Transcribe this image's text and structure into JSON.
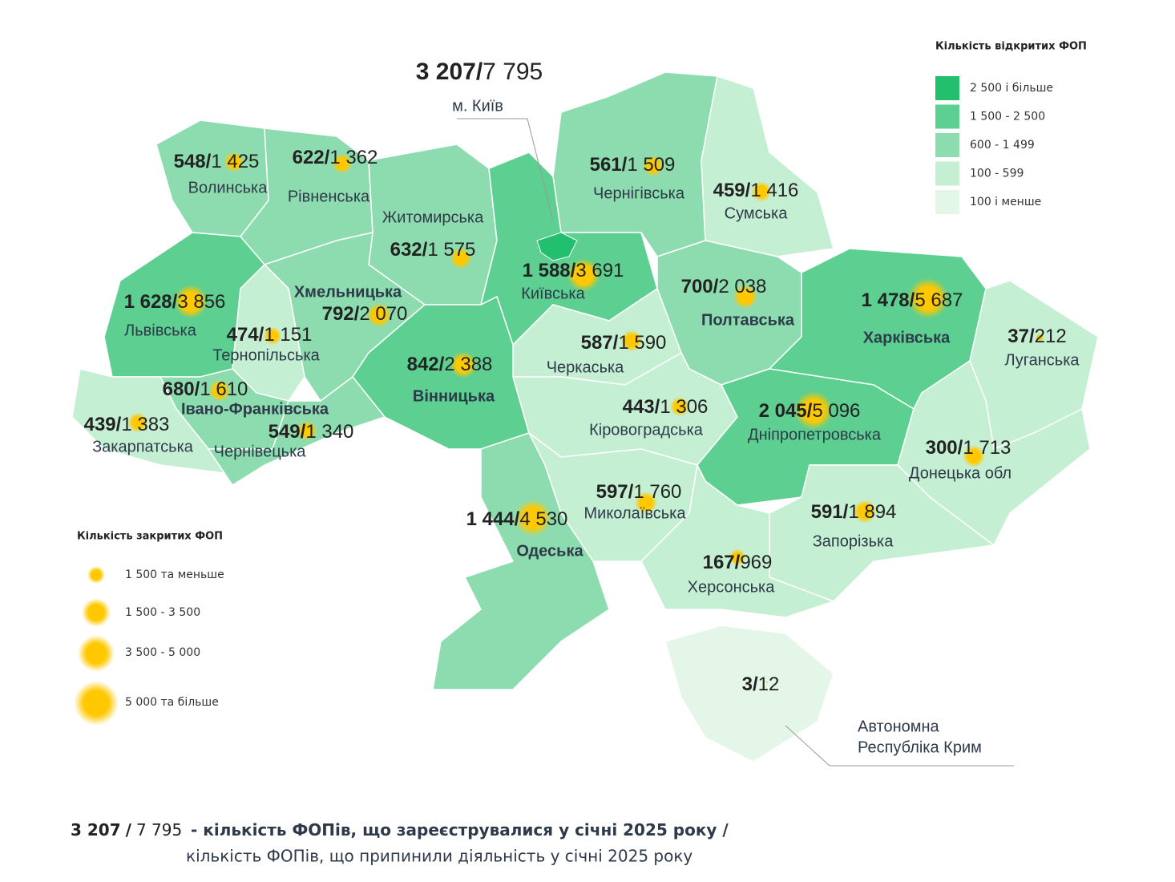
{
  "legend_opened": {
    "title": "Кількість відкритих ФОП",
    "items": [
      {
        "label": "2 500 і більше",
        "color": "#22c06e"
      },
      {
        "label": "1 500 - 2 500",
        "color": "#5ccf91"
      },
      {
        "label": "600 - 1 499",
        "color": "#8ddcaf"
      },
      {
        "label": "100 - 599",
        "color": "#c5efd3"
      },
      {
        "label": "100 і менше",
        "color": "#e4f6e8"
      }
    ]
  },
  "legend_closed": {
    "title": "Кількість закритих ФОП",
    "items": [
      {
        "label": "1 500 та меньше"
      },
      {
        "label": "1 500 - 3 500"
      },
      {
        "label": "3 500 - 5 000"
      },
      {
        "label": "5 000 та більше"
      }
    ]
  },
  "separator": "/",
  "capital": {
    "opened": "3 207",
    "closed": "7 795",
    "name": "м. Київ",
    "color": "#22c06e"
  },
  "regions": [
    {
      "name": "Волинська",
      "opened": "548",
      "closed": "1 425",
      "color": "#8ddcaf"
    },
    {
      "name": "Рівненська",
      "opened": "622",
      "closed": "1 362",
      "color": "#8ddcaf"
    },
    {
      "name": "Житомирська",
      "opened": "632",
      "closed": "1 575",
      "color": "#8ddcaf"
    },
    {
      "name": "Чернігівська",
      "opened": "561",
      "closed": "1 509",
      "color": "#8ddcaf"
    },
    {
      "name": "Сумська",
      "opened": "459",
      "closed": "1 416",
      "color": "#c5efd3"
    },
    {
      "name": "Київська",
      "opened": "1 588",
      "closed": "3 691",
      "color": "#5ccf91"
    },
    {
      "name": "Львівська",
      "opened": "1 628",
      "closed": "3 856",
      "color": "#5ccf91"
    },
    {
      "name": "Хмельницька",
      "opened": "792",
      "closed": "2 070",
      "color": "#8ddcaf",
      "bold": true
    },
    {
      "name": "Тернопільська",
      "opened": "474",
      "closed": "1 151",
      "color": "#c5efd3"
    },
    {
      "name": "Полтавська",
      "opened": "700",
      "closed": "2 038",
      "color": "#8ddcaf",
      "bold": true
    },
    {
      "name": "Харківська",
      "opened": "1 478",
      "closed": "5 687",
      "color": "#5ccf91",
      "bold": true
    },
    {
      "name": "Луганська",
      "opened": "37",
      "closed": "212",
      "color": "#c5efd3"
    },
    {
      "name": "Черкаська",
      "opened": "587",
      "closed": "1 590",
      "color": "#c5efd3"
    },
    {
      "name": "Вінницька",
      "opened": "842",
      "closed": "2 388",
      "color": "#5ccf91",
      "bold": true
    },
    {
      "name": "Івано-Франківська",
      "opened": "680",
      "closed": "1 610",
      "color": "#8ddcaf",
      "bold": true
    },
    {
      "name": "Кіровоградська",
      "opened": "443",
      "closed": "1 306",
      "color": "#c5efd3"
    },
    {
      "name": "Дніпропетровська",
      "opened": "2 045",
      "closed": "5 096",
      "color": "#5ccf91"
    },
    {
      "name": "Закарпатська",
      "opened": "439",
      "closed": "1 383",
      "color": "#c5efd3"
    },
    {
      "name": "Чернівецька",
      "opened": "549",
      "closed": "1 340",
      "color": "#8ddcaf"
    },
    {
      "name": "Донецька обл",
      "opened": "300",
      "closed": "1 713",
      "color": "#c5efd3"
    },
    {
      "name": "Миколаївська",
      "opened": "597",
      "closed": "1 760",
      "color": "#c5efd3"
    },
    {
      "name": "Одеська",
      "opened": "1 444",
      "closed": "4 530",
      "color": "#8ddcaf",
      "bold": true
    },
    {
      "name": "Запорізька",
      "opened": "591",
      "closed": "1 894",
      "color": "#c5efd3"
    },
    {
      "name": "Херсонська",
      "opened": "167",
      "closed": "969",
      "color": "#c5efd3"
    }
  ],
  "crimea": {
    "opened": "3",
    "closed": "12",
    "name_lines": [
      "Автономна",
      "Республіка Крим"
    ],
    "color": "#e4f6e8"
  },
  "footer": {
    "opened": "3 207",
    "closed": "7 795",
    "line1": "- кількість ФОПів, що зареєструвалися у січні 2025 року /",
    "line2": "кількість ФОПів, що припинили діяльність у січні 2025 року"
  }
}
